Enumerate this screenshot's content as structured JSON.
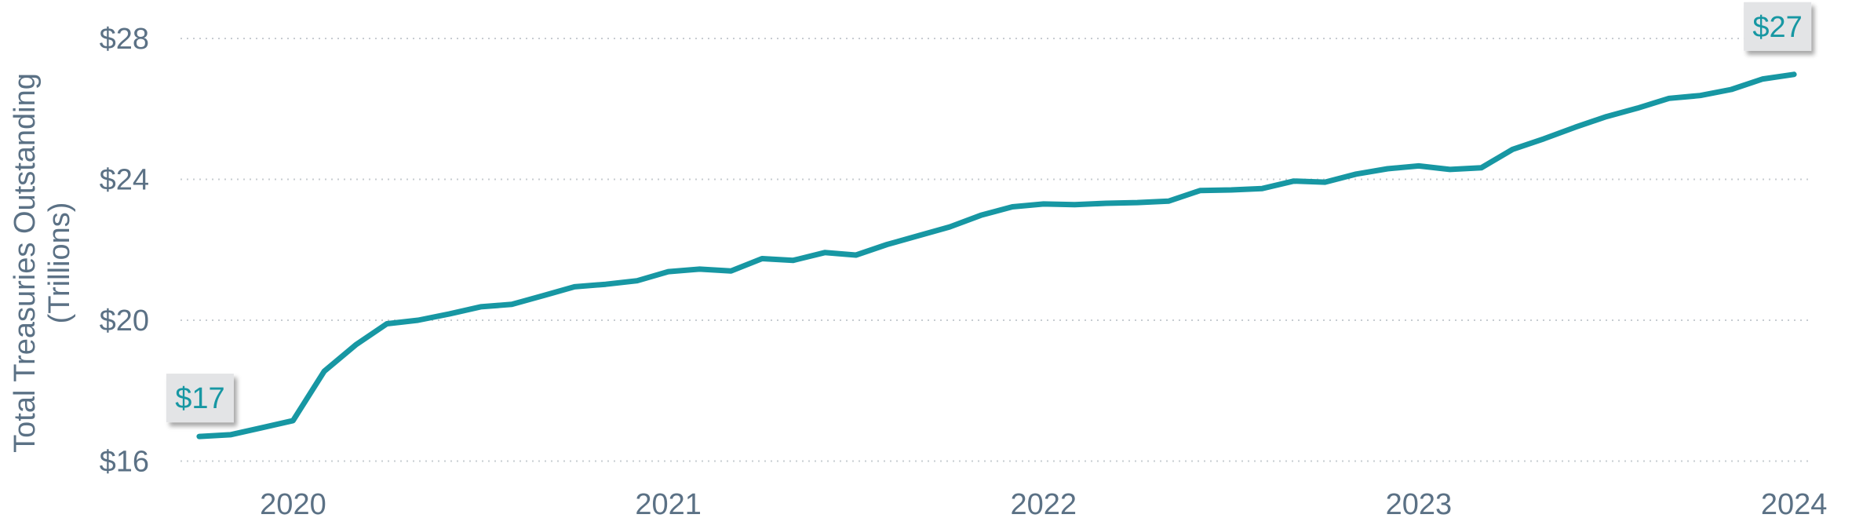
{
  "colors": {
    "line": "#1797a3",
    "axis_text": "#5b7185",
    "grid": "#c7ccd1",
    "callout_fill": "#e3e4e6",
    "callout_text": "#1797a3"
  },
  "chart_data": {
    "type": "line",
    "title": "",
    "xlabel": "",
    "ylabel": "Total Treasuries Outstanding (Trillions)",
    "ylabel_lines": [
      "Total Treasuries Outstanding",
      "(Trillions)"
    ],
    "y_ticks": [
      {
        "value": 16,
        "label": "$16"
      },
      {
        "value": 20,
        "label": "$20"
      },
      {
        "value": 24,
        "label": "$24"
      },
      {
        "value": 28,
        "label": "$28"
      }
    ],
    "x_ticks": [
      {
        "value": 2020,
        "label": "2020"
      },
      {
        "value": 2021,
        "label": "2021"
      },
      {
        "value": 2022,
        "label": "2022"
      },
      {
        "value": 2023,
        "label": "2023"
      },
      {
        "value": 2024,
        "label": "2024"
      }
    ],
    "xlim": [
      2019.7,
      2024.05
    ],
    "ylim": [
      15.9,
      28.2
    ],
    "grid": true,
    "legend": "none",
    "series": [
      {
        "x": [
          2019.75,
          2019.833,
          2019.917,
          2020.0,
          2020.083,
          2020.167,
          2020.25,
          2020.333,
          2020.417,
          2020.5,
          2020.583,
          2020.667,
          2020.75,
          2020.833,
          2020.917,
          2021.0,
          2021.083,
          2021.167,
          2021.25,
          2021.333,
          2021.417,
          2021.5,
          2021.583,
          2021.667,
          2021.75,
          2021.833,
          2021.917,
          2022.0,
          2022.083,
          2022.167,
          2022.25,
          2022.333,
          2022.417,
          2022.5,
          2022.583,
          2022.667,
          2022.75,
          2022.833,
          2022.917,
          2023.0,
          2023.083,
          2023.167,
          2023.25,
          2023.333,
          2023.417,
          2023.5,
          2023.583,
          2023.667,
          2023.75,
          2023.833,
          2023.917,
          2024.0
        ],
        "y": [
          16.7,
          16.75,
          16.95,
          17.15,
          18.55,
          19.3,
          19.9,
          20.0,
          20.18,
          20.38,
          20.45,
          20.7,
          20.95,
          21.02,
          21.12,
          21.38,
          21.45,
          21.4,
          21.75,
          21.7,
          21.92,
          21.85,
          22.15,
          22.4,
          22.65,
          22.98,
          23.22,
          23.3,
          23.28,
          23.32,
          23.34,
          23.38,
          23.68,
          23.7,
          23.74,
          23.95,
          23.92,
          24.15,
          24.3,
          24.38,
          24.28,
          24.33,
          24.85,
          25.15,
          25.48,
          25.78,
          26.02,
          26.3,
          26.38,
          26.55,
          26.85,
          26.98
        ]
      }
    ],
    "annotations": [
      {
        "label": "$17",
        "anchor": "start"
      },
      {
        "label": "$27",
        "anchor": "end"
      }
    ]
  }
}
